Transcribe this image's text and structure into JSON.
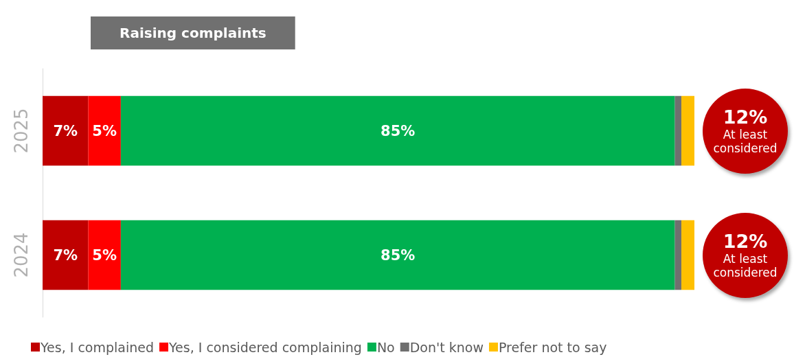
{
  "chart_data": {
    "type": "bar",
    "orientation": "horizontal",
    "stacked": true,
    "title": "Raising complaints",
    "categories": [
      "2025",
      "2024"
    ],
    "xlim": [
      0,
      100
    ],
    "tick_labels": "y",
    "legend": "bottom left",
    "series": [
      {
        "name": "Yes, I complained",
        "color": "#c00000",
        "values": [
          7,
          7
        ],
        "value_labels": [
          "7%",
          "7%"
        ]
      },
      {
        "name": "Yes, I considered complaining",
        "color": "#ff0000",
        "values": [
          5,
          5
        ],
        "value_labels": [
          "5%",
          "5%"
        ]
      },
      {
        "name": "No",
        "color": "#00b050",
        "values": [
          85,
          85
        ],
        "value_labels": [
          "85%",
          "85%"
        ]
      },
      {
        "name": "Don't know",
        "color": "#6f6f6f",
        "values": [
          1,
          1
        ],
        "value_labels": [
          null,
          null
        ]
      },
      {
        "name": "Prefer not to say",
        "color": "#ffc000",
        "values": [
          2,
          2
        ],
        "value_labels": [
          null,
          null
        ]
      }
    ],
    "annotations": [
      "12%\nAt least\nconsidered",
      "12%\nAt least\nconsidered"
    ]
  }
}
